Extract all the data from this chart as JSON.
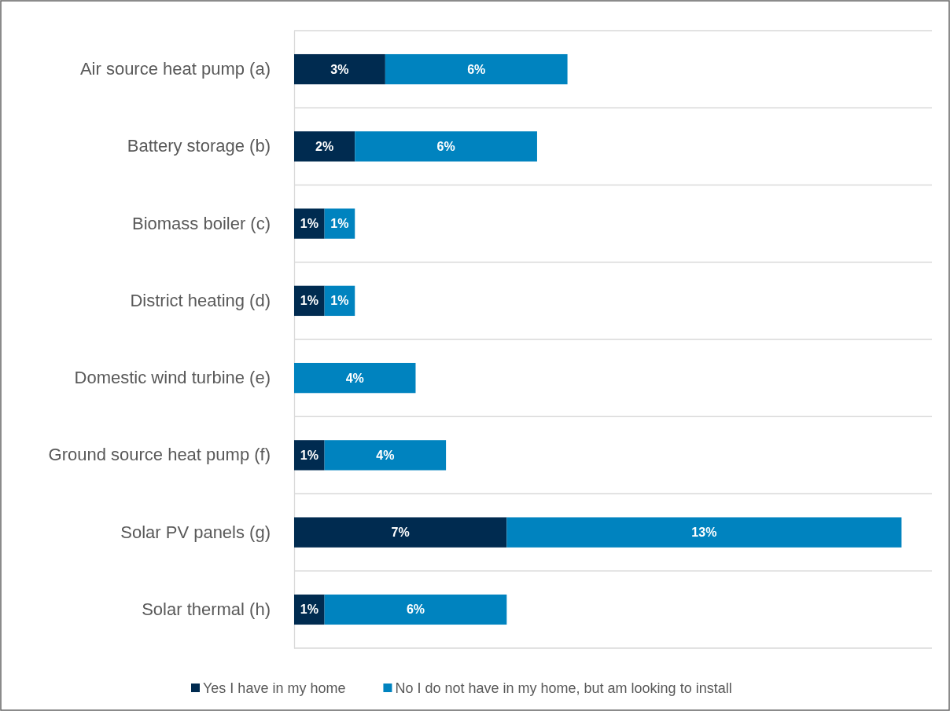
{
  "chart_data": {
    "type": "bar",
    "orientation": "horizontal",
    "stacked": true,
    "categories": [
      "Air source heat pump (a)",
      "Battery storage (b)",
      "Biomass boiler (c)",
      "District heating (d)",
      "Domestic wind turbine (e)",
      "Ground source heat pump (f)",
      "Solar PV panels (g)",
      "Solar thermal (h)"
    ],
    "series": [
      {
        "name": "Yes I have in my home",
        "color": "#002b50",
        "values": [
          3,
          2,
          1,
          1,
          null,
          1,
          7,
          1
        ],
        "value_labels": [
          "3%",
          "2%",
          "1%",
          "1%",
          null,
          "1%",
          "7%",
          "1%"
        ]
      },
      {
        "name": "No I do not have in my home, but am looking to install",
        "color": "#0083bf",
        "values": [
          6,
          6,
          1,
          1,
          4,
          4,
          13,
          6
        ],
        "value_labels": [
          "6%",
          "6%",
          "1%",
          "1%",
          "4%",
          "4%",
          "13%",
          "6%"
        ]
      }
    ],
    "tick_labels": "y",
    "grid": "y",
    "legend": "bottom"
  }
}
